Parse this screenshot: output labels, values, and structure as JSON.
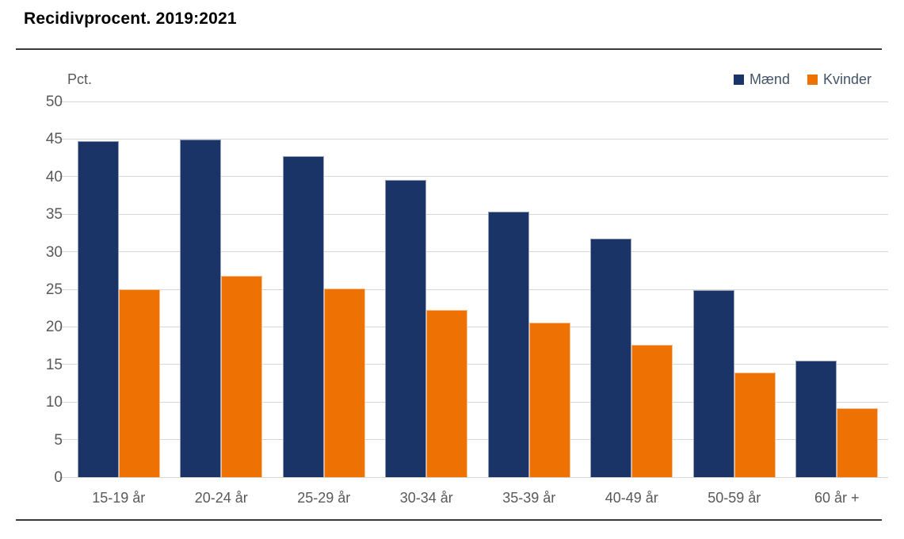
{
  "title": "Recidivprocent. 2019:2021",
  "colors": {
    "maend": "#1b3468",
    "kvinder": "#ee7203",
    "gridline": "#d8d8d2",
    "axis_text": "#595959",
    "legend_text": "#44546a",
    "rule": "#3a3a3a"
  },
  "legend": {
    "maend_label": "Mænd",
    "kvinder_label": "Kvinder"
  },
  "chart_data": {
    "type": "bar",
    "title": "Recidivprocent. 2019:2021",
    "xlabel": "",
    "ylabel": "Pct.",
    "ylim": [
      0,
      50
    ],
    "ytick_step": 5,
    "grid": true,
    "legend_position": "top-right",
    "categories": [
      "15-19 år",
      "20-24 år",
      "25-29 år",
      "30-34 år",
      "35-39 år",
      "40-49 år",
      "50-59 år",
      "60 år +"
    ],
    "series": [
      {
        "name": "Mænd",
        "color": "#1b3468",
        "values": [
          44.7,
          44.9,
          42.7,
          39.6,
          35.3,
          31.7,
          24.9,
          15.5
        ]
      },
      {
        "name": "Kvinder",
        "color": "#ee7203",
        "values": [
          25.0,
          26.8,
          25.1,
          22.3,
          20.6,
          17.6,
          13.9,
          9.2
        ]
      }
    ]
  }
}
